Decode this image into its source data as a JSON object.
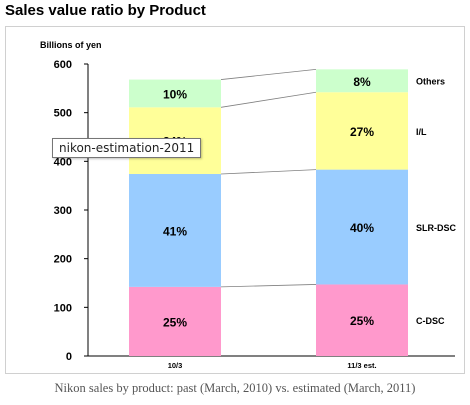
{
  "title": "Sales value ratio by Product",
  "caption": "Nikon sales by product: past (March, 2010) vs. estimated (March, 2011)",
  "tooltip": "nikon-estimation-2011",
  "colors": {
    "C-DSC": "#ff99cc",
    "SLR-DSC": "#99ccff",
    "I/L": "#ffff99",
    "Others": "#ccffcc"
  },
  "chart_data": {
    "type": "bar",
    "stacked": true,
    "ylabel": "Billions of yen",
    "ylim": [
      0,
      600
    ],
    "yticks": [
      0,
      100,
      200,
      300,
      400,
      500,
      600
    ],
    "categories": [
      "10/3",
      "11/3 est."
    ],
    "series": [
      {
        "name": "C-DSC",
        "values": [
          142,
          147
        ],
        "labels": [
          "25%",
          "25%"
        ]
      },
      {
        "name": "SLR-DSC",
        "values": [
          232,
          236
        ],
        "labels": [
          "41%",
          "40%"
        ]
      },
      {
        "name": "I/L",
        "values": [
          137,
          159
        ],
        "labels": [
          "24%",
          "27%"
        ]
      },
      {
        "name": "Others",
        "values": [
          57,
          47
        ],
        "labels": [
          "10%",
          "8%"
        ]
      }
    ],
    "legend_placement": "right of bars"
  }
}
